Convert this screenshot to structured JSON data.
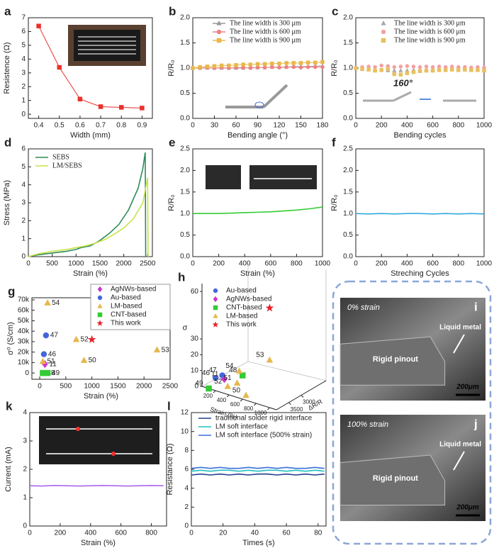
{
  "chart_data": [
    {
      "panel": "a",
      "type": "line",
      "xlabel": "Width (mm)",
      "ylabel": "Resistence (Ω)",
      "xlim": [
        0.35,
        0.95
      ],
      "xticks": [
        0.4,
        0.5,
        0.6,
        0.7,
        0.8,
        0.9
      ],
      "ylim": [
        -0.3,
        7
      ],
      "yticks": [
        0,
        1,
        2,
        3,
        4,
        5,
        6,
        7
      ],
      "series": [
        {
          "color": "#e8322c",
          "marker": "square",
          "x": [
            0.4,
            0.5,
            0.6,
            0.7,
            0.8,
            0.9
          ],
          "values": [
            6.4,
            3.4,
            1.1,
            0.55,
            0.5,
            0.45
          ]
        }
      ]
    },
    {
      "panel": "b",
      "type": "line",
      "xlabel": "Bending angle (°)",
      "ylabel": "R/R₀",
      "xlim": [
        0,
        180
      ],
      "xticks": [
        0,
        30,
        60,
        90,
        120,
        150,
        180
      ],
      "ylim": [
        0,
        2
      ],
      "yticks": [
        {
          "value": 0,
          "label": "0.0"
        },
        0.5,
        {
          "value": 1,
          "label": "1.0"
        },
        1.5,
        {
          "value": 2,
          "label": "2.0"
        }
      ],
      "x": [
        0,
        10,
        20,
        30,
        40,
        50,
        60,
        70,
        80,
        90,
        100,
        110,
        120,
        130,
        140,
        150,
        160,
        170,
        180
      ],
      "series": [
        {
          "name": "The line width is 300 μm",
          "color": "#9a9a9a",
          "marker": "triangle",
          "values": [
            1.0,
            1.0,
            1.0,
            1.0,
            1.0,
            1.0,
            1.0,
            1.0,
            1.01,
            1.01,
            1.01,
            1.02,
            1.02,
            1.02,
            1.03,
            1.03,
            1.03,
            1.04,
            1.04
          ]
        },
        {
          "name": "The line width is 600 μm",
          "color": "#f08080",
          "marker": "circle",
          "values": [
            1.0,
            1.0,
            1.01,
            1.0,
            1.01,
            1.0,
            1.01,
            1.01,
            1.0,
            1.01,
            1.01,
            1.02,
            1.01,
            1.02,
            1.02,
            1.01,
            1.02,
            1.02,
            1.02
          ]
        },
        {
          "name": "The line width is 900 μm",
          "color": "#e8b84a",
          "marker": "square",
          "values": [
            1.0,
            1.02,
            1.03,
            1.04,
            1.05,
            1.05,
            1.06,
            1.07,
            1.07,
            1.08,
            1.08,
            1.09,
            1.09,
            1.1,
            1.1,
            1.1,
            1.11,
            1.11,
            1.12
          ]
        }
      ]
    },
    {
      "panel": "c",
      "type": "scatter",
      "xlabel": "Bending cycles",
      "ylabel": "R/R₀",
      "annotation": "160°",
      "xlim": [
        0,
        1000
      ],
      "xticks": [
        0,
        200,
        400,
        600,
        800,
        1000
      ],
      "ylim": [
        0,
        2
      ],
      "yticks": [
        {
          "value": 0,
          "label": "0.0"
        },
        0.5,
        {
          "value": 1,
          "label": "1.0"
        },
        1.5,
        {
          "value": 2,
          "label": "2.0"
        }
      ],
      "x": [
        0,
        50,
        100,
        150,
        200,
        250,
        300,
        350,
        400,
        450,
        500,
        550,
        600,
        650,
        700,
        750,
        800,
        850,
        900,
        950,
        1000
      ],
      "series": [
        {
          "name": "The line width is 300 μm",
          "color": "#aaaaaa",
          "marker": "triangle",
          "values": [
            1.0,
            0.98,
            0.97,
            0.96,
            0.96,
            0.95,
            0.95,
            0.95,
            0.95,
            0.96,
            0.96,
            0.96,
            0.97,
            0.97,
            0.97,
            0.97,
            0.97,
            0.97,
            0.97,
            0.97,
            0.97
          ]
        },
        {
          "name": "The line width is 600 μm",
          "color": "#f4a0a0",
          "marker": "circle",
          "values": [
            1.0,
            1.02,
            1.03,
            1.02,
            1.05,
            1.04,
            1.02,
            1.03,
            1.04,
            1.03,
            1.02,
            1.03,
            1.02,
            1.03,
            1.02,
            1.03,
            1.02,
            1.02,
            1.01,
            1.02,
            1.01
          ]
        },
        {
          "name": "The line width is 900 μm",
          "color": "#e8c060",
          "marker": "square",
          "values": [
            1.0,
            0.98,
            0.97,
            0.95,
            0.96,
            0.98,
            0.88,
            0.87,
            0.9,
            0.92,
            0.94,
            0.95,
            0.95,
            0.96,
            0.96,
            0.97,
            0.96,
            0.97,
            0.96,
            0.96,
            0.95
          ]
        }
      ]
    },
    {
      "panel": "d",
      "type": "line",
      "xlabel": "Strain (%)",
      "ylabel": "Stress (MPa)",
      "xlim": [
        0,
        2600
      ],
      "xticks": [
        0,
        500,
        1000,
        1500,
        2000,
        2500
      ],
      "ylim": [
        0,
        6
      ],
      "yticks": [
        0,
        1,
        2,
        3,
        4,
        5,
        6
      ],
      "series": [
        {
          "name": "SEBS",
          "color": "#2e8b57",
          "x": [
            0,
            200,
            500,
            800,
            1000,
            1100,
            1300,
            1500,
            1700,
            1900,
            2100,
            2300,
            2400,
            2450,
            2460
          ],
          "values": [
            0,
            0.1,
            0.2,
            0.3,
            0.4,
            0.5,
            0.6,
            0.9,
            1.3,
            1.8,
            2.6,
            3.8,
            4.9,
            5.8,
            0
          ]
        },
        {
          "name": "LM/SEBS",
          "color": "#c7e34a",
          "x": [
            0,
            200,
            500,
            800,
            1000,
            1200,
            1400,
            1600,
            1800,
            2000,
            2200,
            2400,
            2500,
            2510
          ],
          "values": [
            0,
            0.15,
            0.3,
            0.4,
            0.5,
            0.6,
            0.75,
            0.95,
            1.25,
            1.6,
            2.1,
            3.0,
            4.4,
            0
          ]
        }
      ]
    },
    {
      "panel": "e",
      "type": "line",
      "xlabel": "Strain (%)",
      "ylabel": "R/R₀",
      "xlim": [
        0,
        1000
      ],
      "xticks": [
        0,
        200,
        400,
        600,
        800,
        1000
      ],
      "ylim": [
        0,
        2.5
      ],
      "yticks": [
        {
          "value": 0,
          "label": "0.0"
        },
        0.5,
        {
          "value": 1,
          "label": "1.0"
        },
        1.5,
        {
          "value": 2,
          "label": "2.0"
        },
        2.5
      ],
      "x": [
        0,
        100,
        200,
        300,
        400,
        500,
        600,
        700,
        800,
        900,
        1000
      ],
      "series": [
        {
          "color": "#33cc33",
          "values": [
            1.0,
            1.0,
            1.0,
            1.01,
            1.02,
            1.03,
            1.04,
            1.06,
            1.08,
            1.11,
            1.15
          ]
        }
      ]
    },
    {
      "panel": "f",
      "type": "line",
      "xlabel": "Streching Cycles",
      "ylabel": "R/R₀",
      "xlim": [
        0,
        1000
      ],
      "xticks": [
        0,
        200,
        400,
        600,
        800,
        1000
      ],
      "ylim": [
        0,
        2.5
      ],
      "yticks": [
        {
          "value": 0,
          "label": "0.0"
        },
        0.5,
        {
          "value": 1,
          "label": "1.0"
        },
        1.5,
        {
          "value": 2,
          "label": "2.0"
        },
        2.5
      ],
      "x": [
        0,
        100,
        200,
        300,
        400,
        500,
        600,
        700,
        800,
        900,
        1000
      ],
      "series": [
        {
          "color": "#33aadd",
          "values": [
            1.0,
            0.99,
            1.0,
            0.99,
            1.0,
            1.0,
            0.99,
            1.0,
            0.99,
            1.0,
            0.99
          ]
        }
      ]
    },
    {
      "panel": "g",
      "type": "scatter",
      "xlabel": "Strain (%)",
      "ylabel": "σ⁰ (S/cm)",
      "xlim": [
        -150,
        2500
      ],
      "xticks": [
        0,
        500,
        1000,
        1500,
        2000,
        2500
      ],
      "ylim": [
        -6000,
        72000
      ],
      "yticks": [
        0,
        {
          "value": 10000,
          "label": "10k"
        },
        {
          "value": 20000,
          "label": "20k"
        },
        {
          "value": 30000,
          "label": "30k"
        },
        {
          "value": 40000,
          "label": "40k"
        },
        {
          "value": 50000,
          "label": "50k"
        },
        {
          "value": 60000,
          "label": "60k"
        },
        {
          "value": 70000,
          "label": "70k"
        }
      ],
      "series": [
        {
          "name": "AgNWs-based",
          "color": "#cc33cc",
          "marker": "diamond",
          "x": [
            100
          ],
          "values": [
            8500
          ],
          "point_labels": [
            "11"
          ]
        },
        {
          "name": "Au-based",
          "color": "#4466dd",
          "marker": "circle",
          "x": [
            120,
            80
          ],
          "values": [
            36000,
            18000
          ],
          "point_labels": [
            "47",
            "46"
          ]
        },
        {
          "name": "LM-based",
          "color": "#e6b84d",
          "marker": "triangle",
          "x": [
            150,
            700,
            850,
            2250,
            60
          ],
          "values": [
            67000,
            32000,
            12000,
            22000,
            11000
          ],
          "point_labels": [
            "54",
            "52",
            "50",
            "53",
            "51"
          ]
        },
        {
          "name": "CNT-based",
          "color": "#33cc33",
          "marker": "square",
          "x": [
            60,
            150
          ],
          "values": [
            0,
            0
          ],
          "point_labels": [
            "48",
            "49"
          ]
        },
        {
          "name": "This work",
          "color": "#e8222c",
          "marker": "star",
          "x": [
            1000
          ],
          "values": [
            32000
          ]
        }
      ]
    },
    {
      "panel": "h",
      "type": "scatter3d",
      "xlabel": "Strain (%)",
      "ylabel": "σ",
      "zlabel": "ΔR/R",
      "xlim": [
        0,
        1100
      ],
      "xticks": [
        200,
        400,
        600,
        800,
        1000
      ],
      "ylim": [
        0,
        65
      ],
      "yticks": [
        0,
        10,
        20,
        30,
        60
      ],
      "zlim": [
        4000,
        2000
      ],
      "zticks": [
        3500,
        3000
      ],
      "series": [
        {
          "name": "Au-based",
          "color": "#4466dd",
          "marker": "circle",
          "x": [
            300,
            200
          ],
          "values": [
            11,
            8
          ],
          "point_labels": [
            "47",
            "46"
          ]
        },
        {
          "name": "AgNWs-based",
          "color": "#cc33cc",
          "marker": "diamond",
          "x": [
            330
          ],
          "values": [
            9
          ],
          "point_labels": [
            "11"
          ]
        },
        {
          "name": "CNT-based",
          "color": "#33cc33",
          "marker": "square",
          "x": [
            600,
            100
          ],
          "values": [
            15,
            0
          ],
          "point_labels": [
            "48",
            "49"
          ]
        },
        {
          "name": "LM-based",
          "color": "#e6b84d",
          "marker": "triangle",
          "x": [
            550,
            1000,
            520,
            380,
            650
          ],
          "values": [
            17,
            30,
            9,
            5,
            3
          ],
          "point_labels": [
            "54",
            "53",
            "51",
            "52",
            "50"
          ]
        },
        {
          "name": "This work",
          "color": "#e8222c",
          "marker": "star",
          "x": [
            1000
          ],
          "values": [
            63
          ]
        }
      ]
    },
    {
      "panel": "k",
      "type": "line",
      "xlabel": "Strain (%)",
      "ylabel": "Current (mA)",
      "xlim": [
        0,
        900
      ],
      "xticks": [
        0,
        200,
        400,
        600,
        800
      ],
      "ylim": [
        0,
        4
      ],
      "yticks": [
        0,
        1,
        2,
        3,
        4
      ],
      "x": [
        0,
        80,
        160,
        240,
        320,
        400,
        480,
        560,
        640,
        720,
        800,
        880
      ],
      "series": [
        {
          "color": "#aa66ee",
          "values": [
            1.42,
            1.41,
            1.43,
            1.42,
            1.41,
            1.42,
            1.43,
            1.42,
            1.41,
            1.42,
            1.43,
            1.42
          ]
        }
      ]
    },
    {
      "panel": "l",
      "type": "line",
      "xlabel": "Times (s)",
      "ylabel": "Resistance (Ω)",
      "xlim": [
        0,
        85
      ],
      "xticks": [
        0,
        20,
        40,
        60,
        80
      ],
      "ylim": [
        0,
        12
      ],
      "yticks": [
        0,
        2,
        4,
        6,
        8,
        10,
        12
      ],
      "x": [
        0,
        6,
        12,
        18,
        24,
        30,
        36,
        42,
        48,
        54,
        60,
        66,
        72,
        78,
        84
      ],
      "series": [
        {
          "name": "traditional solder rigid interface",
          "color": "#1f3f8f",
          "values": [
            5.4,
            5.5,
            5.4,
            5.5,
            5.4,
            5.5,
            5.4,
            5.5,
            5.5,
            5.4,
            5.5,
            5.4,
            5.5,
            5.4,
            5.5
          ]
        },
        {
          "name": "LM soft interface",
          "color": "#20c0c0",
          "values": [
            5.8,
            5.9,
            5.8,
            5.9,
            5.9,
            5.8,
            5.9,
            5.8,
            5.9,
            5.9,
            5.8,
            5.9,
            5.8,
            5.9,
            5.8
          ]
        },
        {
          "name": "LM soft interface (500% strain)",
          "color": "#3a6fd8",
          "values": [
            6.1,
            6.2,
            6.1,
            6.2,
            6.1,
            6.1,
            6.2,
            6.1,
            6.2,
            6.1,
            6.2,
            6.1,
            6.1,
            6.2,
            6.1
          ]
        }
      ]
    }
  ],
  "images": [
    {
      "panel": "i",
      "strain": "0% strain",
      "liquid": "Liquid metal",
      "pinout": "Rigid pinout",
      "scale": "200μm"
    },
    {
      "panel": "j",
      "strain": "100% strain",
      "liquid": "Liquid metal",
      "pinout": "Rigid pinout",
      "scale": "200μm"
    }
  ]
}
